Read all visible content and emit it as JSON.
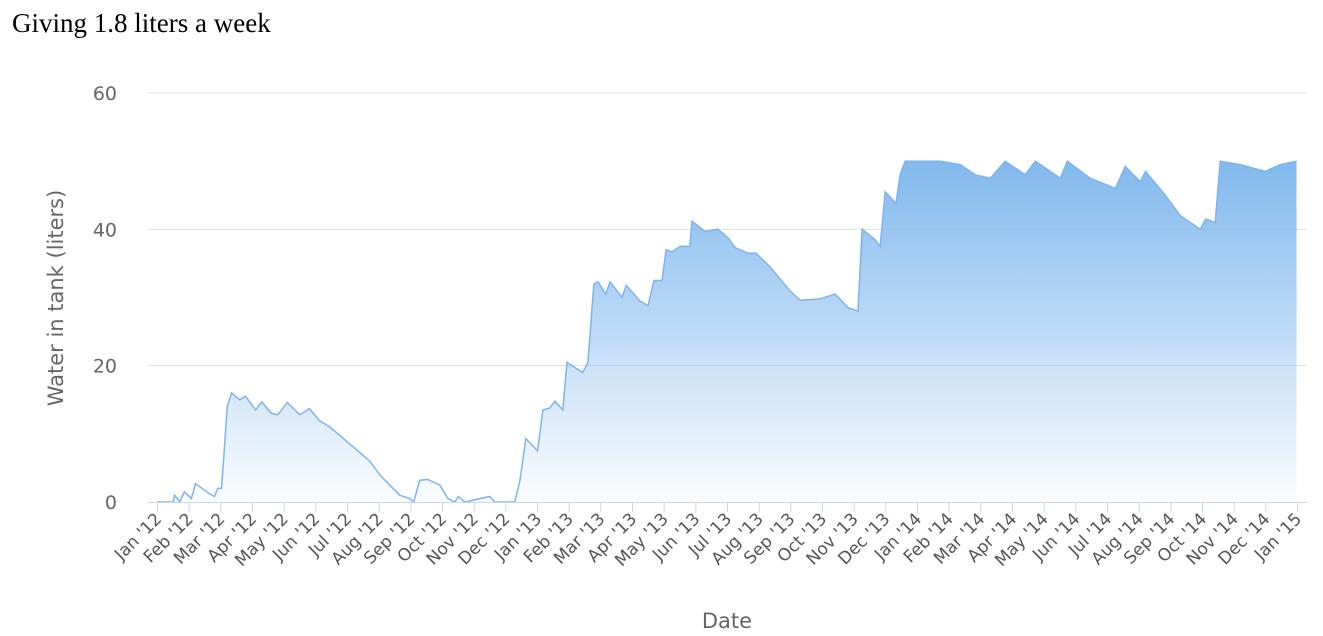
{
  "chart_data": {
    "type": "area",
    "title": "Giving 1.8 liters a week",
    "x_label": "Date",
    "y_label": "Water in tank (liters)",
    "color": "#7cb5ec",
    "x": [
      0,
      0.5,
      0.54,
      0.7,
      0.85,
      1.07,
      1.2,
      1.64,
      1.8,
      1.9,
      2.02,
      2.1,
      2.2,
      2.34,
      2.6,
      2.78,
      3.1,
      3.29,
      3.6,
      3.8,
      4.1,
      4.49,
      4.8,
      5.1,
      5.44,
      5.75,
      6.07,
      6.38,
      6.7,
      7.02,
      7.33,
      7.65,
      7.96,
      8.09,
      8.28,
      8.53,
      8.91,
      9.17,
      9.39,
      9.5,
      9.7,
      10.49,
      10.65,
      11.28,
      11.44,
      11.63,
      12.0,
      12.17,
      12.39,
      12.55,
      12.8,
      12.93,
      13.09,
      13.43,
      13.59,
      13.78,
      13.91,
      14.16,
      14.29,
      14.67,
      14.8,
      15.23,
      15.49,
      15.68,
      15.93,
      16.06,
      16.25,
      16.5,
      16.81,
      16.88,
      17.29,
      17.7,
      18.01,
      18.24,
      18.65,
      18.9,
      19.34,
      19.97,
      20.29,
      20.92,
      21.4,
      21.81,
      22.12,
      22.25,
      22.66,
      22.82,
      22.98,
      23.32,
      23.45,
      23.61,
      24.72,
      25.35,
      25.82,
      26.3,
      26.77,
      27.4,
      27.72,
      28.51,
      28.73,
      29.45,
      30.25,
      30.56,
      31.04,
      31.2,
      31.83,
      32.3,
      32.93,
      33.1,
      33.4,
      33.56,
      34.19,
      34.98,
      35.46,
      35.97
    ],
    "values": [
      0,
      0,
      1,
      0,
      1.5,
      0.5,
      2.7,
      1.2,
      0.8,
      2,
      2,
      7,
      14,
      16,
      15,
      15.5,
      13.5,
      14.7,
      13,
      12.8,
      14.6,
      12.8,
      13.7,
      12,
      11,
      9.8,
      8.5,
      7.3,
      6,
      4,
      2.5,
      1,
      0.5,
      0,
      3.2,
      3.3,
      2.5,
      0.5,
      0,
      0.8,
      0,
      0.8,
      0,
      0,
      3,
      9.3,
      7.5,
      13.5,
      13.8,
      14.8,
      13.5,
      20.5,
      20,
      19,
      20.5,
      32,
      32.3,
      30.5,
      32.3,
      30,
      31.8,
      29.5,
      28.8,
      32.5,
      32.5,
      37,
      36.7,
      37.5,
      37.5,
      41.2,
      39.7,
      40,
      38.8,
      37.3,
      36.5,
      36.5,
      34.5,
      31,
      29.6,
      29.8,
      30.5,
      28.5,
      28,
      40,
      38.5,
      37.5,
      45.5,
      43.8,
      48,
      50,
      50,
      49.5,
      48,
      47.5,
      50,
      48,
      50,
      47.5,
      50,
      47.5,
      46,
      49.2,
      47,
      48.5,
      45,
      42,
      40,
      41.5,
      41,
      50,
      49.5,
      48.5,
      49.5,
      50
    ],
    "xlim": [
      -0.3,
      36.3
    ],
    "xticks": [
      {
        "value": 0,
        "label": "Jan '12"
      },
      {
        "value": 1,
        "label": "Feb '12"
      },
      {
        "value": 2,
        "label": "Mar '12"
      },
      {
        "value": 3,
        "label": "Apr '12"
      },
      {
        "value": 4,
        "label": "May '12"
      },
      {
        "value": 5,
        "label": "Jun '12"
      },
      {
        "value": 6,
        "label": "Jul '12"
      },
      {
        "value": 7,
        "label": "Aug '12"
      },
      {
        "value": 8,
        "label": "Sep '12"
      },
      {
        "value": 9,
        "label": "Oct '12"
      },
      {
        "value": 10,
        "label": "Nov '12"
      },
      {
        "value": 11,
        "label": "Dec '12"
      },
      {
        "value": 12,
        "label": "Jan '13"
      },
      {
        "value": 13,
        "label": "Feb '13"
      },
      {
        "value": 14,
        "label": "Mar '13"
      },
      {
        "value": 15,
        "label": "Apr '13"
      },
      {
        "value": 16,
        "label": "May '13"
      },
      {
        "value": 17,
        "label": "Jun '13"
      },
      {
        "value": 18,
        "label": "Jul '13"
      },
      {
        "value": 19,
        "label": "Aug '13"
      },
      {
        "value": 20,
        "label": "Sep '13"
      },
      {
        "value": 21,
        "label": "Oct '13"
      },
      {
        "value": 22,
        "label": "Nov '13"
      },
      {
        "value": 23,
        "label": "Dec '13"
      },
      {
        "value": 24,
        "label": "Jan '14"
      },
      {
        "value": 25,
        "label": "Feb '14"
      },
      {
        "value": 26,
        "label": "Mar '14"
      },
      {
        "value": 27,
        "label": "Apr '14"
      },
      {
        "value": 28,
        "label": "May '14"
      },
      {
        "value": 29,
        "label": "Jun '14"
      },
      {
        "value": 30,
        "label": "Jul '14"
      },
      {
        "value": 31,
        "label": "Aug '14"
      },
      {
        "value": 32,
        "label": "Sep '14"
      },
      {
        "value": 33,
        "label": "Oct '14"
      },
      {
        "value": 34,
        "label": "Nov '14"
      },
      {
        "value": 35,
        "label": "Dec '14"
      },
      {
        "value": 36,
        "label": "Jan '15"
      }
    ],
    "ylim": [
      0,
      60
    ],
    "yticks": [
      0,
      20,
      40,
      60
    ],
    "grid": true
  }
}
